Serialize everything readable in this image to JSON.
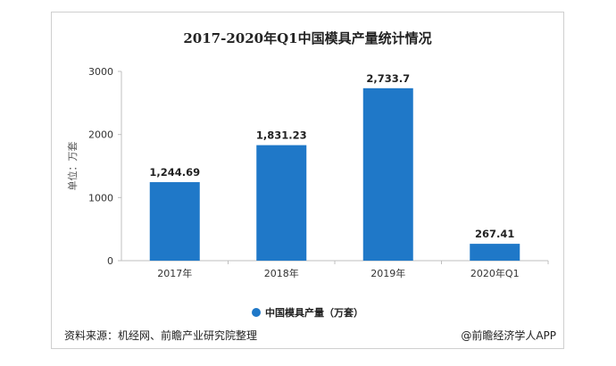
{
  "chart_data": {
    "type": "bar",
    "title": "2017-2020年Q1中国模具产量统计情况",
    "categories": [
      "2017年",
      "2018年",
      "2019年",
      "2020年Q1"
    ],
    "series": [
      {
        "name": "中国模具产量（万套）",
        "values": [
          1244.69,
          1831.23,
          2733.7,
          267.41
        ]
      }
    ],
    "data_labels": [
      "1,244.69",
      "1,831.23",
      "2,733.7",
      "267.41"
    ],
    "ylabel": "单位：万套",
    "ylim": [
      0,
      3000
    ],
    "yticks": [
      0,
      1000,
      2000,
      3000
    ],
    "grid": false,
    "legend_position": "bottom",
    "bar_color": "#1f78c8"
  },
  "footer": {
    "source": "资料来源：机经网、前瞻产业研究院整理",
    "credit": "@前瞻经济学人APP"
  }
}
